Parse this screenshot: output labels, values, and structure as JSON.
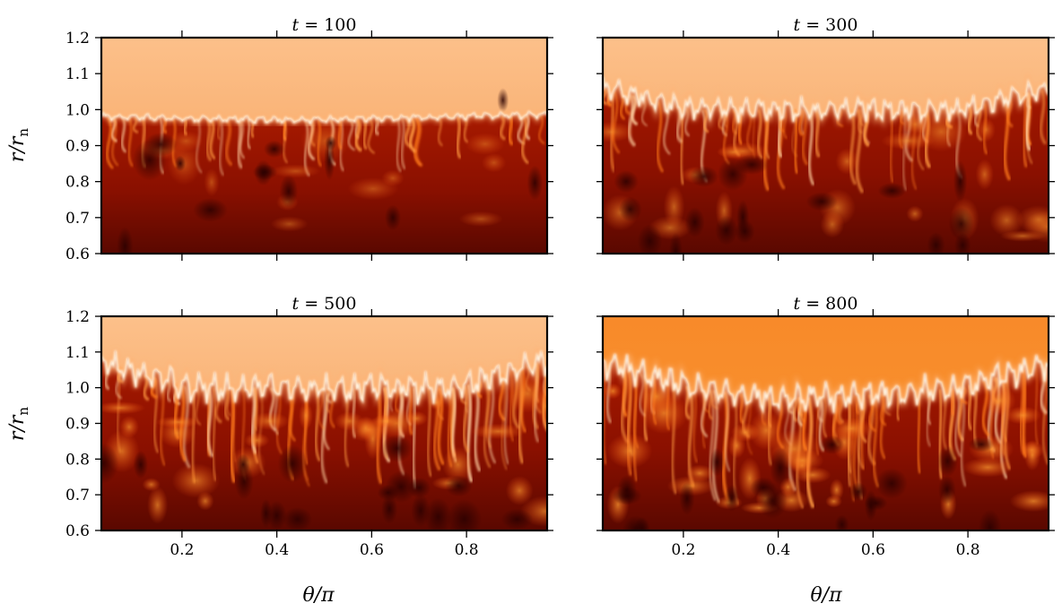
{
  "chart_data": {
    "type": "heatmap",
    "xlabel": "θ/π",
    "ylabel": "r/r",
    "ylabel_sub": "n",
    "xlim": [
      0.03,
      0.97
    ],
    "ylim": [
      0.6,
      1.2
    ],
    "xticks": [
      0.2,
      0.4,
      0.6,
      0.8
    ],
    "xtick_labels": [
      "0.2",
      "0.4",
      "0.6",
      "0.8"
    ],
    "yticks": [
      0.6,
      0.7,
      0.8,
      0.9,
      1.0,
      1.1,
      1.2
    ],
    "ytick_labels": [
      "0.6",
      "0.7",
      "0.8",
      "0.9",
      "1.0",
      "1.1",
      "1.2"
    ],
    "colors": {
      "ambient_top": "#fcc08a",
      "ambient_bottom": "#f6a05a",
      "ambient_late": "#f88a2a",
      "interior_dark": "#5a0800",
      "interior_mid": "#a81a00",
      "plume": "#ff7a1a",
      "front": "#fff3e0"
    },
    "panels": [
      {
        "title_var": "t",
        "title_value": "= 100",
        "t": 100,
        "front_r": [
          0.98,
          0.975,
          0.97,
          0.975,
          0.98,
          0.985
        ],
        "roughness": 0.006,
        "mixing": 0.15
      },
      {
        "title_var": "t",
        "title_value": "= 300",
        "t": 300,
        "front_r": [
          1.06,
          1.0,
          1.0,
          1.0,
          1.0,
          1.06
        ],
        "roughness": 0.02,
        "mixing": 0.45
      },
      {
        "title_var": "t",
        "title_value": "= 500",
        "t": 500,
        "front_r": [
          1.07,
          1.0,
          1.0,
          1.0,
          1.0,
          1.08
        ],
        "roughness": 0.025,
        "mixing": 0.65
      },
      {
        "title_var": "t",
        "title_value": "= 800",
        "t": 800,
        "front_r": [
          1.07,
          1.0,
          0.97,
          0.98,
          1.0,
          1.07
        ],
        "roughness": 0.025,
        "mixing": 0.8
      }
    ]
  }
}
